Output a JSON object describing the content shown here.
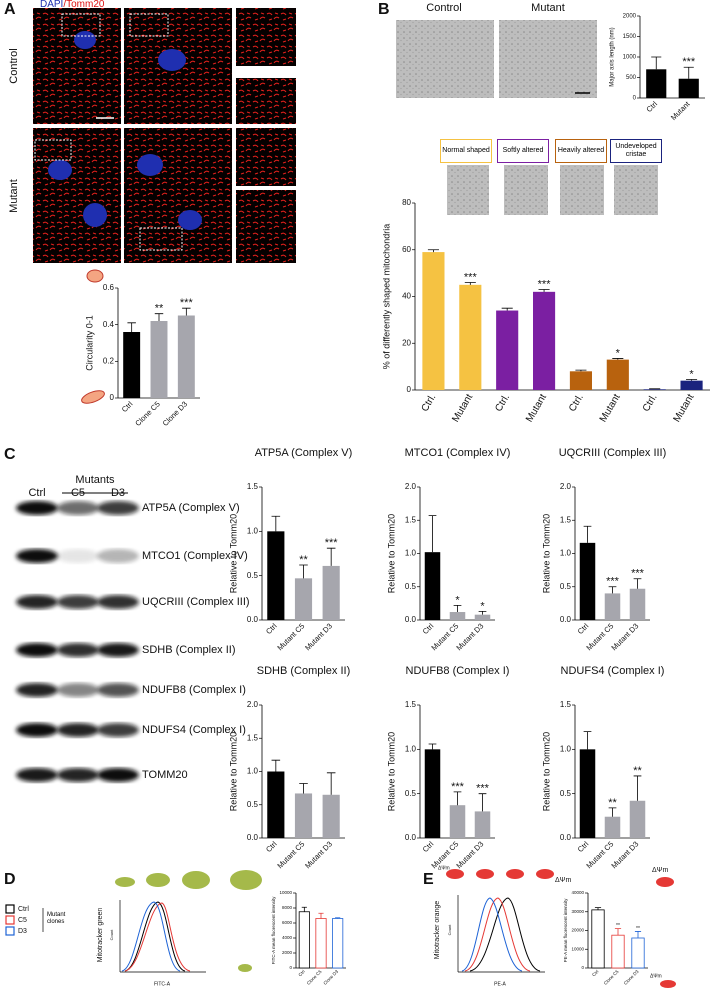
{
  "figure": {
    "panel_labels": [
      "A",
      "B",
      "C",
      "D",
      "E"
    ],
    "a": {
      "stain": [
        "DAPI",
        "/Tomm20"
      ],
      "rows": [
        "Control",
        "Mutant"
      ]
    },
    "b": {
      "columns": [
        "Control",
        "Mutant"
      ],
      "shapes": [
        {
          "label": "Normal shaped",
          "color": "#f5c242"
        },
        {
          "label": "Softly altered",
          "color": "#7b1fa2"
        },
        {
          "label": "Heavily altered",
          "color": "#b8620e"
        },
        {
          "label": "Undeveloped cristae",
          "color": "#1a237e"
        }
      ]
    },
    "c": {
      "group": "Mutants",
      "lanes": [
        "Ctrl",
        "C5",
        "D3"
      ],
      "blots": [
        "ATP5A (Complex V)",
        "MTCO1 (Complex IV)",
        "UQCRIII (Complex III)",
        "SDHB (Complex II)",
        "NDUFB8 (Complex I)",
        "NDUFS4 (Complex I)",
        "TOMM20"
      ]
    },
    "d": {
      "legend": [
        {
          "label": "Ctrl",
          "color": "#000000"
        },
        {
          "label": "C5",
          "color": "#e53935"
        },
        {
          "label": "D3",
          "color": "#1e63d6"
        }
      ],
      "group": "Mutant clones",
      "ylabel": "Mitotracker green",
      "count": "Count",
      "xlabel": "FITC-A"
    },
    "e": {
      "ylabel": "Mitotracker orange",
      "count": "Count",
      "xlabel": "PE-A",
      "potential": "ΔΨm"
    }
  },
  "chart_data": [
    {
      "type": "bar",
      "ylabel": "Circularity 0-1",
      "categories": [
        "Ctrl",
        "Clone C5",
        "Clone D3"
      ],
      "values": [
        0.36,
        0.42,
        0.45
      ],
      "errors": [
        0.05,
        0.04,
        0.04
      ],
      "annotations": [
        null,
        "**",
        "***"
      ],
      "colors": [
        "#000000",
        "#a6a6ad",
        "#a6a6ad"
      ],
      "ylim": [
        0,
        0.6
      ],
      "yticks": [
        0,
        0.2,
        0.4,
        0.6
      ]
    },
    {
      "type": "bar",
      "ylabel": "Major axis length (nm)",
      "categories": [
        "Ctrl",
        "Mutant"
      ],
      "values": [
        700,
        470
      ],
      "errors": [
        300,
        280
      ],
      "annotations": [
        null,
        "***"
      ],
      "colors": [
        "#000000",
        "#000000"
      ],
      "ylim": [
        0,
        2000
      ],
      "yticks": [
        0,
        500,
        1000,
        1500,
        2000
      ]
    },
    {
      "type": "bar",
      "ylabel": "% of differently shaped mitochondria",
      "categories": [
        "Ctrl.",
        "Mutant",
        "Ctrl.",
        "Mutant",
        "Ctrl.",
        "Mutant",
        "Ctrl.",
        "Mutant"
      ],
      "values": [
        59,
        45,
        34,
        42,
        8,
        13,
        0.3,
        4
      ],
      "errors": [
        1,
        1,
        1,
        1,
        0.5,
        0.5,
        0.2,
        0.5
      ],
      "annotations": [
        null,
        "***",
        null,
        "***",
        null,
        "*",
        null,
        "*"
      ],
      "colors": [
        "#f5c242",
        "#f5c242",
        "#7b1fa2",
        "#7b1fa2",
        "#b8620e",
        "#b8620e",
        "#1a237e",
        "#1a237e"
      ],
      "ylim": [
        0,
        80
      ],
      "yticks": [
        0,
        20,
        40,
        60,
        80
      ]
    },
    {
      "type": "bar",
      "title": "ATP5A (Complex V)",
      "ylabel": "Relative to Tomm20",
      "categories": [
        "Ctrl",
        "Mutant C5",
        "Mutant D3"
      ],
      "values": [
        1.0,
        0.47,
        0.61
      ],
      "errors": [
        0.17,
        0.15,
        0.2
      ],
      "annotations": [
        null,
        "**",
        "***"
      ],
      "colors": [
        "#000000",
        "#a6a6ad",
        "#a6a6ad"
      ],
      "ylim": [
        0,
        1.5
      ],
      "yticks": [
        {
          "value": 0,
          "label": "0.0"
        },
        0.5,
        {
          "value": 1,
          "label": "1.0"
        },
        1.5
      ]
    },
    {
      "type": "bar",
      "title": "MTCO1 (Complex IV)",
      "ylabel": "Relative to Tomm20",
      "categories": [
        "Ctrl",
        "Mutant C5",
        "Mutant D3"
      ],
      "values": [
        1.02,
        0.12,
        0.08
      ],
      "errors": [
        0.55,
        0.1,
        0.05
      ],
      "annotations": [
        null,
        "*",
        "*"
      ],
      "colors": [
        "#000000",
        "#a6a6ad",
        "#a6a6ad"
      ],
      "ylim": [
        0,
        2
      ],
      "yticks": [
        {
          "value": 0,
          "label": "0.0"
        },
        0.5,
        {
          "value": 1,
          "label": "1.0"
        },
        1.5,
        {
          "value": 2,
          "label": "2.0"
        }
      ]
    },
    {
      "type": "bar",
      "title": "UQCRIII (Complex III)",
      "ylabel": "Relative to Tomm20",
      "categories": [
        "Ctrl",
        "Mutant C5",
        "Mutant D3"
      ],
      "values": [
        1.16,
        0.4,
        0.47
      ],
      "errors": [
        0.25,
        0.1,
        0.15
      ],
      "annotations": [
        null,
        "***",
        "***"
      ],
      "colors": [
        "#000000",
        "#a6a6ad",
        "#a6a6ad"
      ],
      "ylim": [
        0,
        2
      ],
      "yticks": [
        {
          "value": 0,
          "label": "0.0"
        },
        0.5,
        {
          "value": 1,
          "label": "1.0"
        },
        1.5,
        {
          "value": 2,
          "label": "2.0"
        }
      ]
    },
    {
      "type": "bar",
      "title": "SDHB (Complex II)",
      "ylabel": "Relative to Tomm20",
      "categories": [
        "Ctrl",
        "Mutant C5",
        "Mutant D3"
      ],
      "values": [
        1.0,
        0.67,
        0.65
      ],
      "errors": [
        0.17,
        0.15,
        0.33
      ],
      "annotations": [
        null,
        null,
        null
      ],
      "colors": [
        "#000000",
        "#a6a6ad",
        "#a6a6ad"
      ],
      "ylim": [
        0,
        2
      ],
      "yticks": [
        {
          "value": 0,
          "label": "0.0"
        },
        0.5,
        {
          "value": 1,
          "label": "1.0"
        },
        1.5,
        {
          "value": 2,
          "label": "2.0"
        }
      ]
    },
    {
      "type": "bar",
      "title": "NDUFB8 (Complex I)",
      "ylabel": "Relative to Tomm20",
      "categories": [
        "Ctrl",
        "Mutant C5",
        "Mutant D3"
      ],
      "values": [
        1.0,
        0.37,
        0.3
      ],
      "errors": [
        0.06,
        0.15,
        0.2
      ],
      "annotations": [
        null,
        "***",
        "***"
      ],
      "colors": [
        "#000000",
        "#a6a6ad",
        "#a6a6ad"
      ],
      "ylim": [
        0,
        1.5
      ],
      "yticks": [
        {
          "value": 0,
          "label": "0.0"
        },
        0.5,
        {
          "value": 1,
          "label": "1.0"
        },
        1.5
      ]
    },
    {
      "type": "bar",
      "title": "NDUFS4 (Complex I)",
      "ylabel": "Relative to Tomm20",
      "categories": [
        "Ctrl",
        "Mutant C5",
        "Mutant D3"
      ],
      "values": [
        1.0,
        0.24,
        0.42
      ],
      "errors": [
        0.2,
        0.1,
        0.28
      ],
      "annotations": [
        null,
        "**",
        "**"
      ],
      "colors": [
        "#000000",
        "#a6a6ad",
        "#a6a6ad"
      ],
      "ylim": [
        0,
        1.5
      ],
      "yticks": [
        {
          "value": 0,
          "label": "0.0"
        },
        0.5,
        {
          "value": 1,
          "label": "1.0"
        },
        1.5
      ]
    },
    {
      "type": "bar",
      "bar_style": "outline",
      "ylabel": "FITC-A mean fluorescent intensity",
      "categories": [
        "Ctrl",
        "Clone C5",
        "Clone D3"
      ],
      "values": [
        7500,
        6600,
        6600
      ],
      "errors": [
        600,
        700,
        100
      ],
      "annotations": [
        null,
        null,
        null
      ],
      "colors": [
        "#000000",
        "#e53935",
        "#1e63d6"
      ],
      "ylim": [
        0,
        10000
      ],
      "yticks": [
        0,
        2000,
        4000,
        6000,
        8000,
        10000
      ]
    },
    {
      "type": "bar",
      "bar_style": "outline",
      "ylabel": "PE-A mean fluorescent intensity",
      "categories": [
        "Ctrl",
        "Clone C5",
        "Clone D3"
      ],
      "values": [
        31000,
        17500,
        16000
      ],
      "errors": [
        1200,
        3500,
        3500
      ],
      "annotations": [
        null,
        "**",
        "**"
      ],
      "colors": [
        "#000000",
        "#e53935",
        "#1e63d6"
      ],
      "ylim": [
        0,
        40000
      ],
      "yticks": [
        0,
        10000,
        20000,
        30000,
        40000
      ]
    }
  ]
}
